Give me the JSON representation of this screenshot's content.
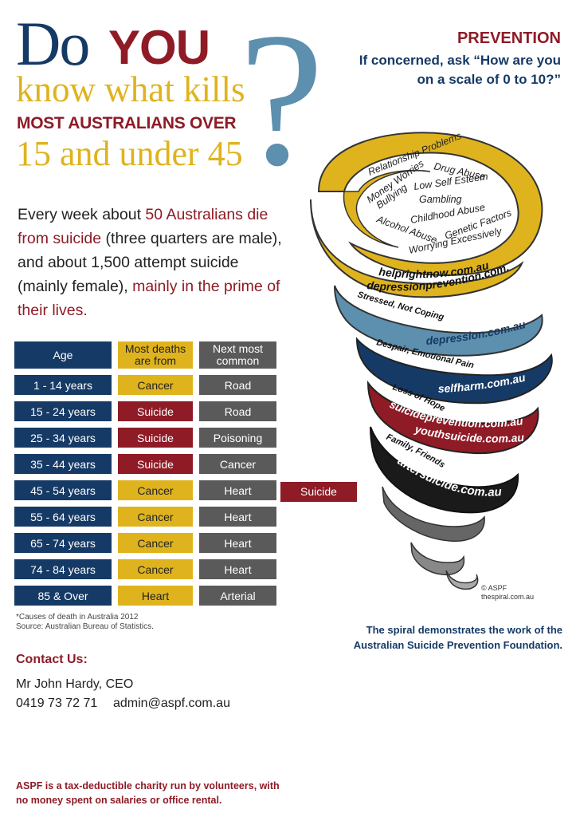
{
  "title": {
    "do": "Do",
    "you": "YOU",
    "know": "know what kills",
    "most": "MOST AUSTRALIANS OVER",
    "age_range": "15 and under 45"
  },
  "intro": {
    "part1": "Every week about ",
    "hl1": "50 Australians die from suicide",
    "part2": " (three quarters are male), and about 1,500 attempt suicide (mainly female), ",
    "hl2": "mainly in the prime of their lives."
  },
  "prevention": {
    "title": "PREVENTION",
    "question": "If concerned, ask “How are you on a scale of 0 to 10?”"
  },
  "table": {
    "headers": [
      "Age",
      "Most deaths are from",
      "Next most common"
    ],
    "rows": [
      {
        "age": "1 - 14 years",
        "most": "Cancer",
        "next": "Road"
      },
      {
        "age": "15 - 24 years",
        "most": "Suicide",
        "next": "Road"
      },
      {
        "age": "25 - 34 years",
        "most": "Suicide",
        "next": "Poisoning"
      },
      {
        "age": "35 - 44 years",
        "most": "Suicide",
        "next": "Cancer"
      },
      {
        "age": "45 - 54 years",
        "most": "Cancer",
        "next": "Heart"
      },
      {
        "age": "55 - 64 years",
        "most": "Cancer",
        "next": "Heart"
      },
      {
        "age": "65 - 74 years",
        "most": "Cancer",
        "next": "Heart"
      },
      {
        "age": "74 - 84 years",
        "most": "Cancer",
        "next": "Heart"
      },
      {
        "age": "85 & Over",
        "most": "Heart",
        "next": "Arterial"
      }
    ],
    "extra": "Suicide",
    "note1": "*Causes of death in Australia 2012",
    "note2": "Source: Australian Bureau of Statistics."
  },
  "contact": {
    "title": "Contact Us:",
    "name": "Mr John Hardy, CEO",
    "phone": "0419 73 72 71",
    "email": "admin@aspf.com.au"
  },
  "charity": "ASPF is a tax-deductible charity run by volunteers, with no money spent on salaries or office rental.",
  "spiral_note": "The spiral demonstrates the work of the Australian Suicide Prevention Foundation.",
  "copyright": {
    "line1": "© ASPF",
    "line2": "thespiral.com.au"
  },
  "spiral": {
    "factors": [
      "Relationship Problems",
      "Money Worries",
      "Drug Abuse",
      "Bullying",
      "Low Self Esteem",
      "Gambling",
      "Childhood Abuse",
      "Alcohol Abuse",
      "Genetic Factors",
      "Worrying Excessively"
    ],
    "url1": "helprightnow.com.au",
    "url2": "depressionprevention.com.au",
    "stage2_label": "Stressed, Not Coping",
    "stage2_url": "depression.com.au",
    "stage3_label": "Despair, Emotional Pain",
    "stage3_url": "selfharm.com.au",
    "stage4_label": "Loss of Hope",
    "stage4_url1": "suicideprevention.com.au",
    "stage4_url2": "youthsuicide.com.au",
    "stage5_label": "Family, Friends",
    "stage5_url": "aftersuicide.com.au"
  },
  "colors": {
    "navy": "#163a66",
    "maroon": "#8e1b26",
    "gold": "#dfb31e",
    "steel": "#5d8fae",
    "grey": "#5a5a5a"
  }
}
